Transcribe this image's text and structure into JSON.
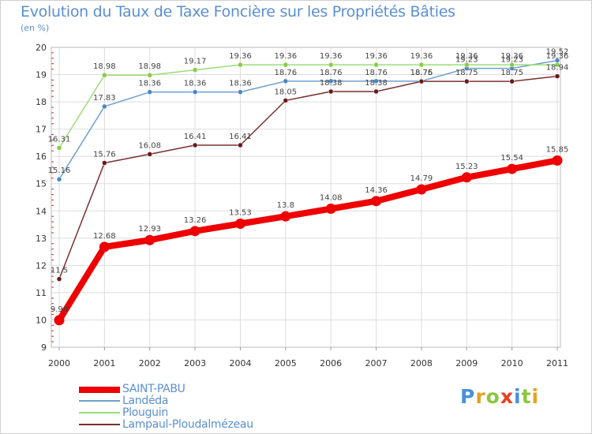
{
  "header": {
    "title": "Evolution du Taux de Taxe Foncière sur les Propriétés Bâties",
    "subtitle": "(en %)"
  },
  "chart_data": {
    "type": "line",
    "title": "Evolution du Taux de Taxe Foncière sur les Propriétés Bâties",
    "ylabel": "(en %)",
    "xlabel": "",
    "ylim": [
      9,
      20
    ],
    "y_ticks": [
      "9",
      "10",
      "11",
      "12",
      "13",
      "14",
      "15",
      "16",
      "17",
      "18",
      "19",
      "20"
    ],
    "grid": true,
    "categories": [
      "2000",
      "2001",
      "2002",
      "2003",
      "2004",
      "2005",
      "2006",
      "2007",
      "2008",
      "2009",
      "2010",
      "2011"
    ],
    "series": [
      {
        "name": "SAINT-PABU",
        "color": "#ee0000",
        "emphasis": true,
        "values": [
          9.99,
          12.68,
          12.93,
          13.26,
          13.53,
          13.8,
          14.08,
          14.36,
          14.79,
          15.23,
          15.54,
          15.85
        ],
        "labels": [
          "9.99",
          "12.68",
          "12.93",
          "13.26",
          "13.53",
          "13.8",
          "14.08",
          "14.36",
          "14.79",
          "15.23",
          "15.54",
          "15.85"
        ]
      },
      {
        "name": "Landéda",
        "color": "#6f9fcf",
        "marker": "#4a88c7",
        "values": [
          15.16,
          17.83,
          18.36,
          18.36,
          18.36,
          18.76,
          18.76,
          18.76,
          18.76,
          19.23,
          19.23,
          19.52
        ],
        "labels": [
          "15.16",
          "17.83",
          "18.36",
          "18.36",
          "18.36",
          "18.76",
          "18.76",
          "18.76",
          "18.76",
          "19.23",
          "19.23",
          "19.52"
        ]
      },
      {
        "name": "Plouguin",
        "color": "#99dd77",
        "marker": "#88cc44",
        "values": [
          16.31,
          18.98,
          18.98,
          19.17,
          19.36,
          19.36,
          19.36,
          19.36,
          19.36,
          19.36,
          19.36,
          19.36
        ],
        "labels": [
          "16.31",
          "18.98",
          "18.98",
          "19.17",
          "19.36",
          "19.36",
          "19.36",
          "19.36",
          "19.36",
          "19.36",
          "19.36",
          "19.36"
        ]
      },
      {
        "name": "Lampaul-Ploudalmézeau",
        "color": "#7a3030",
        "marker": "#6a1a1a",
        "values": [
          11.5,
          15.76,
          16.08,
          16.41,
          16.41,
          18.05,
          18.38,
          18.38,
          18.75,
          18.75,
          18.75,
          18.94
        ],
        "labels": [
          "11.5",
          "15.76",
          "16.08",
          "16.41",
          "16.41",
          "18.05",
          "18.38",
          "18.38",
          "18.75",
          "18.75",
          "18.75",
          "18.94"
        ]
      }
    ]
  },
  "legend": {
    "items": [
      {
        "label": "SAINT-PABU",
        "color": "#ee0000"
      },
      {
        "label": "Landéda",
        "color": "#6f9fcf"
      },
      {
        "label": "Plouguin",
        "color": "#99dd77"
      },
      {
        "label": "Lampaul-Ploudalmézeau",
        "color": "#7a3030"
      }
    ]
  },
  "logo": {
    "letters": [
      "P",
      "r",
      "o",
      "x",
      "i",
      "t",
      "i"
    ],
    "colors": [
      "#4a90d9",
      "#e8a020",
      "#8cc63f",
      "#e84020",
      "#4a90d9",
      "#8cc63f",
      "#e8a020"
    ]
  }
}
